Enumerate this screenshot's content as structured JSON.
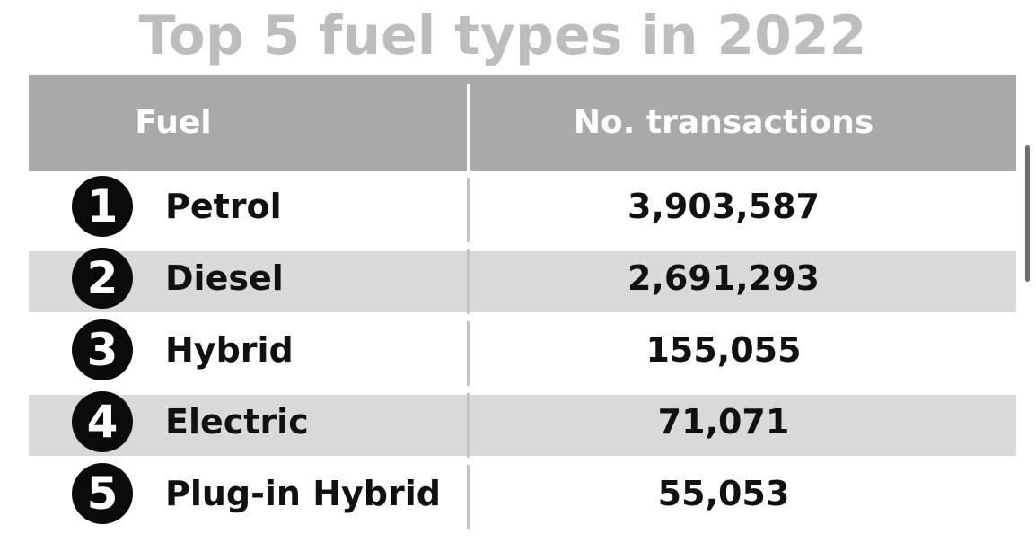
{
  "chart_data": {
    "type": "table",
    "title": "Top 5 fuel types in 2022",
    "columns": [
      "Fuel",
      "No. transactions"
    ],
    "rows": [
      {
        "rank": "1",
        "fuel": "Petrol",
        "transactions": "3,903,587",
        "value": 3903587
      },
      {
        "rank": "2",
        "fuel": "Diesel",
        "transactions": "2,691,293",
        "value": 2691293
      },
      {
        "rank": "3",
        "fuel": "Hybrid",
        "transactions": "155,055",
        "value": 155055
      },
      {
        "rank": "4",
        "fuel": "Electric",
        "transactions": "71,071",
        "value": 71071
      },
      {
        "rank": "5",
        "fuel": "Plug-in Hybrid",
        "transactions": "55,053",
        "value": 55053
      }
    ]
  },
  "colors": {
    "header_bg": "#a9a9a9",
    "title": "#bdbdbd",
    "row_shade": "#d9d9d9",
    "badge": "#0a0a0a"
  }
}
